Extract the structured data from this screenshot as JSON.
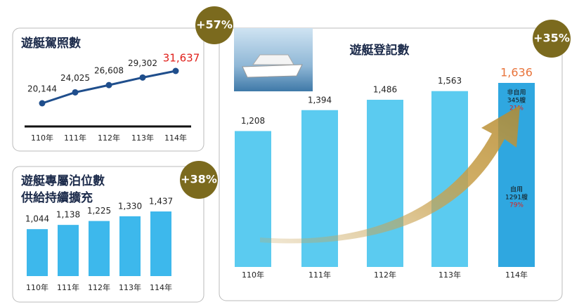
{
  "chart_data": [
    {
      "type": "line",
      "title": "遊艇駕照數",
      "annotation": "+57%",
      "categories": [
        "110年",
        "111年",
        "112年",
        "113年",
        "114年"
      ],
      "values": [
        20144,
        24025,
        26608,
        29302,
        31637
      ],
      "value_labels": [
        "20,144",
        "24,025",
        "26,608",
        "29,302",
        "31,637"
      ],
      "color": "#1f4e8c",
      "last_label_color": "#e0201b"
    },
    {
      "type": "bar",
      "title": "遊艇專屬泊位數",
      "subtitle": "供給持續擴充",
      "annotation": "+38%",
      "categories": [
        "110年",
        "111年",
        "112年",
        "113年",
        "114年"
      ],
      "values": [
        1044,
        1138,
        1225,
        1330,
        1437
      ],
      "value_labels": [
        "1,044",
        "1,138",
        "1,225",
        "1,330",
        "1,437"
      ],
      "color": "#3db8ec"
    },
    {
      "type": "bar",
      "title": "遊艇登記數",
      "annotation": "+35%",
      "categories": [
        "110年",
        "111年",
        "112年",
        "113年",
        "114年"
      ],
      "values": [
        1208,
        1394,
        1486,
        1563,
        1636
      ],
      "value_labels": [
        "1,208",
        "1,394",
        "1,486",
        "1,563",
        "1,636"
      ],
      "color": "#5bcbf0",
      "last_color": "#2fa7e0",
      "last_label_color": "#e8743b",
      "breakdown": [
        {
          "name": "非自用",
          "count": "345艘",
          "share": "21%"
        },
        {
          "name": "自用",
          "count": "1291艘",
          "share": "79%"
        }
      ]
    }
  ]
}
